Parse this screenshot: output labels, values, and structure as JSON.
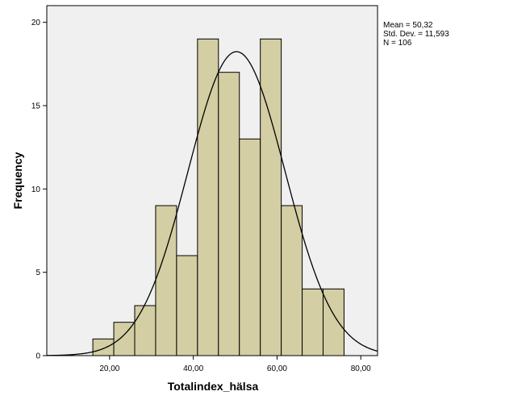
{
  "chart_data": {
    "type": "bar",
    "subtype": "histogram",
    "xlabel": "Totalindex_hälsa",
    "ylabel": "Frequency",
    "xlim": [
      5,
      84
    ],
    "ylim": [
      0,
      21
    ],
    "xticks": [
      20,
      40,
      60,
      80
    ],
    "xtick_labels": [
      "20,00",
      "40,00",
      "60,00",
      "80,00"
    ],
    "yticks": [
      0,
      5,
      10,
      15,
      20
    ],
    "ytick_labels": [
      "0",
      "5",
      "10",
      "15",
      "20"
    ],
    "bins": [
      {
        "start": 16,
        "end": 21,
        "count": 1
      },
      {
        "start": 21,
        "end": 26,
        "count": 2
      },
      {
        "start": 26,
        "end": 31,
        "count": 3
      },
      {
        "start": 31,
        "end": 36,
        "count": 9
      },
      {
        "start": 36,
        "end": 41,
        "count": 6
      },
      {
        "start": 41,
        "end": 46,
        "count": 19
      },
      {
        "start": 46,
        "end": 51,
        "count": 17
      },
      {
        "start": 51,
        "end": 56,
        "count": 13
      },
      {
        "start": 56,
        "end": 61,
        "count": 19
      },
      {
        "start": 61,
        "end": 66,
        "count": 9
      },
      {
        "start": 66,
        "end": 71,
        "count": 4
      },
      {
        "start": 71,
        "end": 76,
        "count": 4
      }
    ],
    "normal_curve": {
      "mean": 50.32,
      "sd": 11.593,
      "n": 106,
      "bin_width": 5
    },
    "stats_text": [
      "Mean = 50,32",
      "Std. Dev. = 11,593",
      "N = 106"
    ],
    "grid": false,
    "colors": {
      "plot_background": "#f0f0f0",
      "bar_fill": "#d3cea3",
      "bar_stroke": "#000000",
      "curve": "#000000"
    }
  }
}
